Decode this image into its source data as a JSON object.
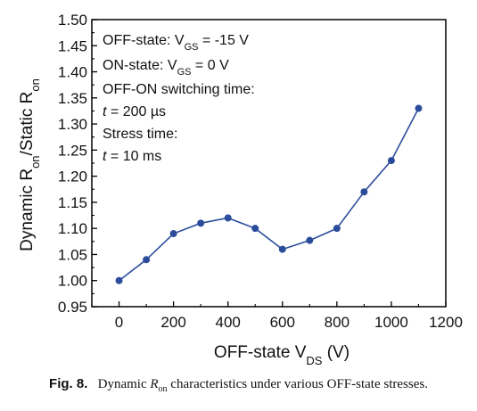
{
  "chart_data": {
    "type": "line",
    "xlabel": {
      "main": "OFF-state V",
      "sub": "DS",
      "tail": " (V)"
    },
    "ylabel": {
      "p1": "Dynamic R",
      "s1": "on",
      "p2": "/Static R",
      "s2": "on"
    },
    "xlim": [
      -100,
      1200
    ],
    "ylim": [
      0.95,
      1.5
    ],
    "xticks": [
      "0",
      "200",
      "400",
      "600",
      "800",
      "1000",
      "1200"
    ],
    "yticks": [
      "0.95",
      "1.00",
      "1.05",
      "1.10",
      "1.15",
      "1.20",
      "1.25",
      "1.30",
      "1.35",
      "1.40",
      "1.45",
      "1.50"
    ],
    "grid": false,
    "series": [
      {
        "color": "#2b4c9b",
        "x": [
          0,
          100,
          200,
          300,
          400,
          500,
          600,
          700,
          800,
          900,
          1000,
          1100
        ],
        "y": [
          1.0,
          1.04,
          1.09,
          1.11,
          1.12,
          1.1,
          1.06,
          1.077,
          1.1,
          1.17,
          1.23,
          1.33
        ]
      }
    ]
  },
  "annotation": {
    "line1": {
      "pre": "OFF-state: V",
      "sub": "GS",
      "post": " = -15 V"
    },
    "line2": {
      "pre": "ON-state: V",
      "sub": "GS",
      "post": " = 0 V"
    },
    "line3": "OFF-ON switching time:",
    "line4": {
      "var": "t",
      "post": " = 200 µs"
    },
    "line5": "Stress time:",
    "line6": {
      "var": "t",
      "post": " = 10 ms"
    }
  },
  "caption": {
    "label": "Fig. 8.",
    "pre": "Dynamic ",
    "var": "R",
    "sub": "on",
    "post": " characteristics under various OFF-state stresses."
  }
}
